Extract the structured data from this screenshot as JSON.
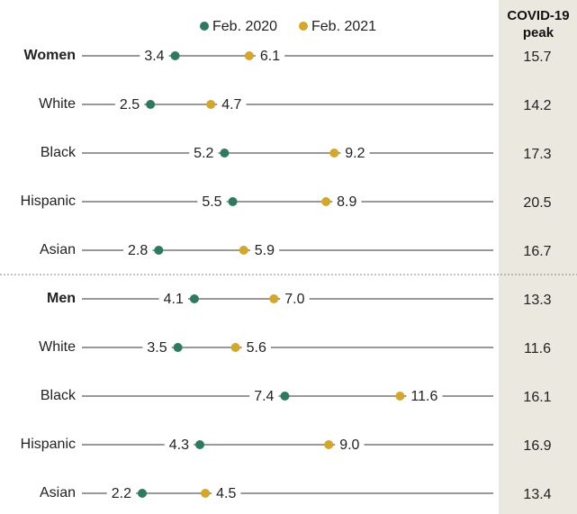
{
  "chart_data": {
    "type": "dot",
    "categories": [
      "Women",
      "White",
      "Black",
      "Hispanic",
      "Asian",
      "Men",
      "White",
      "Black",
      "Hispanic",
      "Asian"
    ],
    "bold": [
      true,
      false,
      false,
      false,
      false,
      true,
      false,
      false,
      false,
      false
    ],
    "series": [
      {
        "name": "Feb. 2020",
        "color": "#2e7a5e",
        "values": [
          3.4,
          2.5,
          5.2,
          5.5,
          2.8,
          4.1,
          3.5,
          7.4,
          4.3,
          2.2
        ]
      },
      {
        "name": "Feb. 2021",
        "color": "#d4a62a",
        "values": [
          6.1,
          4.7,
          9.2,
          8.9,
          5.9,
          7.0,
          5.6,
          11.6,
          9.0,
          4.5
        ],
        "value_labels": [
          "6.1",
          "4.7",
          "9.2",
          "8.9",
          "5.9",
          "7.0",
          "5.6",
          "11.6",
          "9.0",
          "4.5"
        ]
      }
    ],
    "xlim": [
      0,
      15
    ],
    "peak": {
      "title": "COVID-19 peak",
      "values": [
        15.7,
        14.2,
        17.3,
        20.5,
        16.7,
        13.3,
        11.6,
        16.1,
        16.9,
        13.4
      ]
    }
  }
}
